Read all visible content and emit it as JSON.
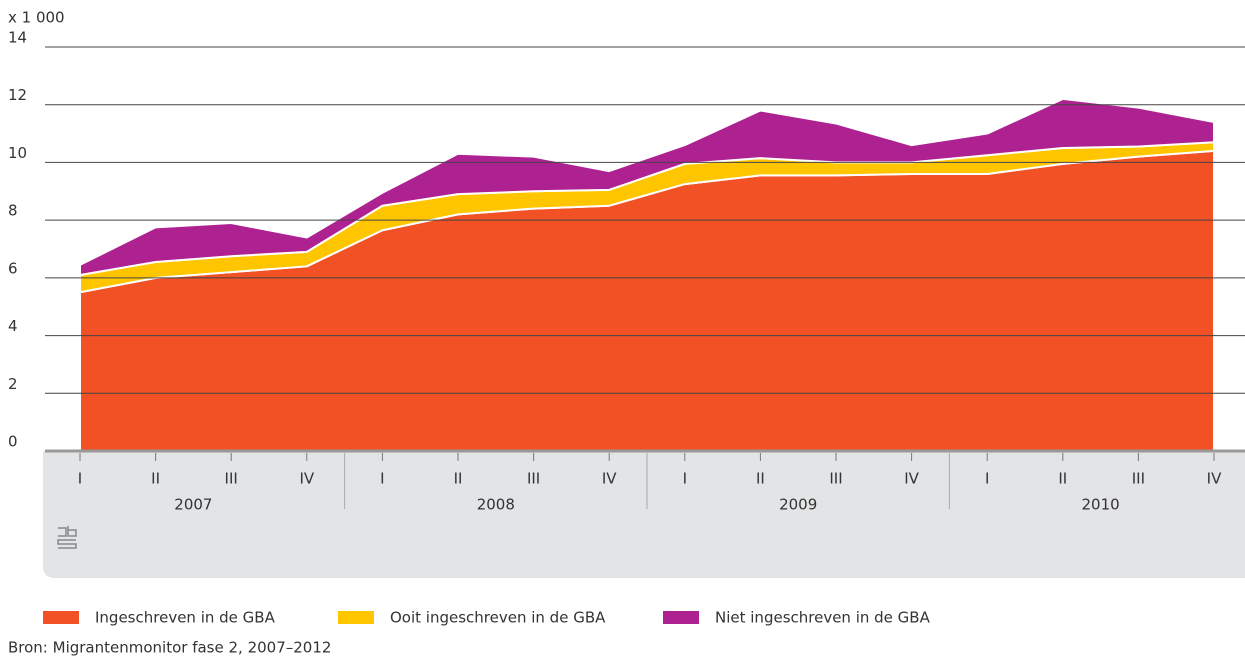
{
  "chart_data": {
    "type": "area",
    "stacked": true,
    "y_label": "x 1 000",
    "categories": [
      "I",
      "II",
      "III",
      "IV",
      "I",
      "II",
      "III",
      "IV",
      "I",
      "II",
      "III",
      "IV",
      "I",
      "II",
      "III",
      "IV"
    ],
    "years": [
      "2007",
      "2008",
      "2009",
      "2010"
    ],
    "series": [
      {
        "name": "Ingeschreven in de GBA",
        "color": "#f15124",
        "values": [
          5.5,
          6.0,
          6.2,
          6.4,
          7.65,
          8.2,
          8.4,
          8.5,
          9.25,
          9.55,
          9.55,
          9.6,
          9.6,
          9.95,
          10.2,
          10.4
        ]
      },
      {
        "name": "Ooit ingeschreven in de GBA",
        "color": "#ffc600",
        "values": [
          0.6,
          0.55,
          0.55,
          0.5,
          0.85,
          0.7,
          0.6,
          0.55,
          0.7,
          0.6,
          0.45,
          0.4,
          0.65,
          0.55,
          0.35,
          0.3
        ]
      },
      {
        "name": "Niet ingeschreven in de GBA",
        "color": "#ae2191",
        "values": [
          0.35,
          1.2,
          1.15,
          0.5,
          0.45,
          1.4,
          1.2,
          0.65,
          0.65,
          1.65,
          1.35,
          0.6,
          0.75,
          1.7,
          1.35,
          0.7
        ]
      }
    ],
    "ylim": [
      0,
      14
    ],
    "yticks": [
      0,
      2,
      4,
      6,
      8,
      10,
      12,
      14
    ],
    "grid": true,
    "source": "Bron: Migrantenmonitor fase 2, 2007–2012"
  }
}
